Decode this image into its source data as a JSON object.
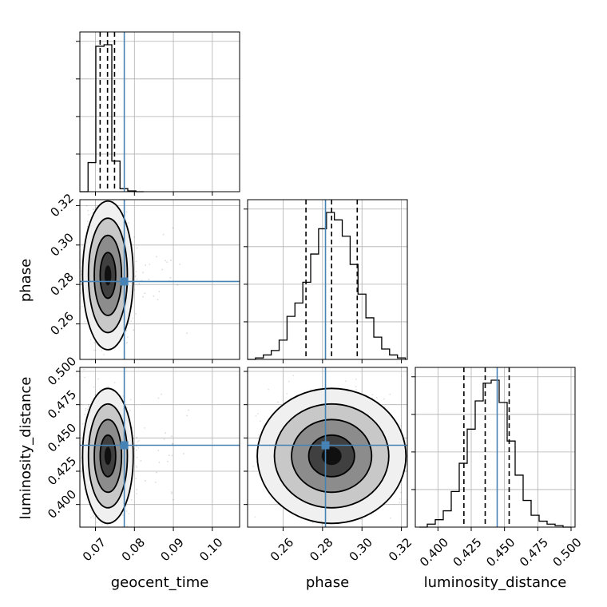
{
  "chart_data": {
    "type": "corner",
    "parameters": [
      "geocent_time",
      "phase",
      "luminosity_distance"
    ],
    "xlabels": [
      "geocent_time",
      "phase",
      "luminosity_distance"
    ],
    "ylabels": [
      "",
      "phase",
      "luminosity_distance"
    ],
    "truths": [
      0.0774,
      0.2815,
      0.4445
    ],
    "ranges": [
      [
        0.066,
        0.107
      ],
      [
        0.242,
        0.323
      ],
      [
        0.383,
        0.503
      ]
    ],
    "ticks": {
      "geocent_time": [
        "0.07",
        "0.08",
        "0.09",
        "0.10"
      ],
      "phase": [
        "0.26",
        "0.28",
        "0.30",
        "0.32"
      ],
      "luminosity_distance": [
        "0.400",
        "0.425",
        "0.450",
        "0.475",
        "0.500"
      ]
    },
    "phase_yticks": [
      "0.26",
      "0.28",
      "0.30",
      "0.32"
    ],
    "distance_yticks": [
      "0.400",
      "0.425",
      "0.450",
      "0.475",
      "0.500"
    ],
    "quantiles": {
      "geocent_time": [
        0.0712,
        0.0731,
        0.0749
      ],
      "phase": [
        0.2716,
        0.2846,
        0.2976
      ],
      "luminosity_distance": [
        0.4195,
        0.4355,
        0.4535
      ]
    },
    "histograms": {
      "geocent_time": {
        "edges": [
          0.066,
          0.0681,
          0.0701,
          0.0722,
          0.0742,
          0.0763,
          0.0783,
          0.0804,
          0.0824
        ],
        "counts": [
          0.0,
          0.19,
          0.95,
          0.96,
          0.2,
          0.02,
          0.005,
          0.0
        ]
      },
      "phase": {
        "edges": [
          0.242,
          0.246,
          0.25,
          0.254,
          0.258,
          0.262,
          0.266,
          0.27,
          0.274,
          0.278,
          0.282,
          0.286,
          0.29,
          0.294,
          0.298,
          0.302,
          0.306,
          0.31,
          0.314,
          0.318,
          0.322
        ],
        "counts": [
          0.0,
          0.01,
          0.03,
          0.06,
          0.13,
          0.29,
          0.38,
          0.52,
          0.71,
          0.88,
          0.99,
          0.94,
          0.83,
          0.64,
          0.44,
          0.28,
          0.15,
          0.07,
          0.03,
          0.01
        ]
      },
      "luminosity_distance": {
        "edges": [
          0.386,
          0.392,
          0.398,
          0.404,
          0.41,
          0.416,
          0.422,
          0.428,
          0.434,
          0.44,
          0.446,
          0.452,
          0.458,
          0.464,
          0.47,
          0.476,
          0.482,
          0.488,
          0.494,
          0.5
        ],
        "counts": [
          0.0,
          0.02,
          0.05,
          0.11,
          0.24,
          0.43,
          0.66,
          0.85,
          0.97,
          0.99,
          0.84,
          0.58,
          0.35,
          0.18,
          0.08,
          0.04,
          0.02,
          0.01,
          0.0
        ]
      }
    },
    "posterior_centers": [
      0.0732,
      0.2846,
      0.4365
    ],
    "posterior_spread": [
      0.0025,
      0.0145,
      0.0195
    ],
    "colors": {
      "truth": "#4682b4",
      "hist": "#000000",
      "grid": "#b0b0b0",
      "scatter": "#000000"
    }
  }
}
